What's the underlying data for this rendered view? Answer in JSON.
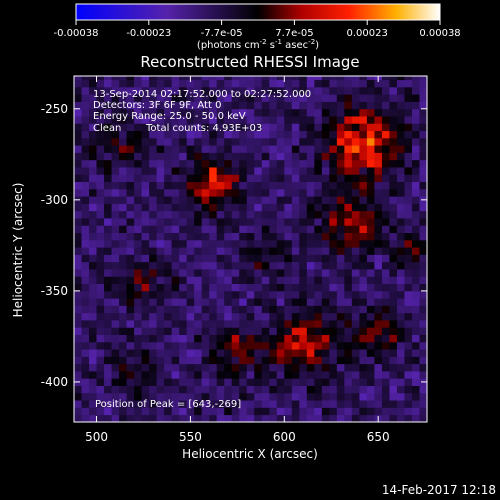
{
  "chart_data": {
    "type": "heatmap",
    "title": "Reconstructed RHESSI Image",
    "xlabel": "Heliocentric X (arcsec)",
    "ylabel": "Heliocentric Y (arcsec)",
    "xlim": [
      488,
      676
    ],
    "ylim": [
      -422,
      -232
    ],
    "xticks": [
      500,
      550,
      600,
      650
    ],
    "yticks": [
      -250,
      -300,
      -350,
      -400
    ],
    "colorbar": {
      "min": -0.00038,
      "max": 0.00038,
      "ticks": [
        "-0.00038",
        "-0.00023",
        "-7.7e-05",
        "7.7e-05",
        "0.00023",
        "0.00038"
      ],
      "unit_label": "(photons cm",
      "unit_exp1": "-2",
      "unit_mid": " s",
      "unit_exp2": "-1",
      "unit_end": " asec",
      "unit_exp3": "-2",
      "unit_close": ")"
    },
    "annotations": {
      "time_range": "13-Sep-2014 02:17:52.000 to 02:27:52.000",
      "detectors": "Detectors: 3F 6F 9F, Att 0",
      "energy": "Energy Range: 25.0 - 50.0 keV",
      "method": "Clean",
      "counts": "Total counts: 4.93E+03",
      "peak": "Position of Peak = [643,-269]"
    },
    "peak": {
      "x": 643,
      "y": -269
    },
    "sources": [
      {
        "x": 642,
        "y": -268,
        "amp": 0.00034,
        "sigma": 13
      },
      {
        "x": 562,
        "y": -292,
        "amp": 0.00026,
        "sigma": 10
      },
      {
        "x": 635,
        "y": -312,
        "amp": 0.00022,
        "sigma": 11
      },
      {
        "x": 650,
        "y": -372,
        "amp": 0.00018,
        "sigma": 9
      },
      {
        "x": 610,
        "y": -378,
        "amp": 0.00024,
        "sigma": 12
      },
      {
        "x": 575,
        "y": -382,
        "amp": 0.00016,
        "sigma": 9
      },
      {
        "x": 512,
        "y": -270,
        "amp": 0.00014,
        "sigma": 9
      },
      {
        "x": 525,
        "y": -345,
        "amp": 0.00013,
        "sigma": 10
      },
      {
        "x": 590,
        "y": -330,
        "amp": 0.00011,
        "sigma": 8
      },
      {
        "x": 520,
        "y": -395,
        "amp": 0.0001,
        "sigma": 9
      },
      {
        "x": 668,
        "y": -330,
        "amp": 0.00012,
        "sigma": 7
      }
    ]
  },
  "footer": {
    "timestamp": "14-Feb-2017 12:18"
  }
}
